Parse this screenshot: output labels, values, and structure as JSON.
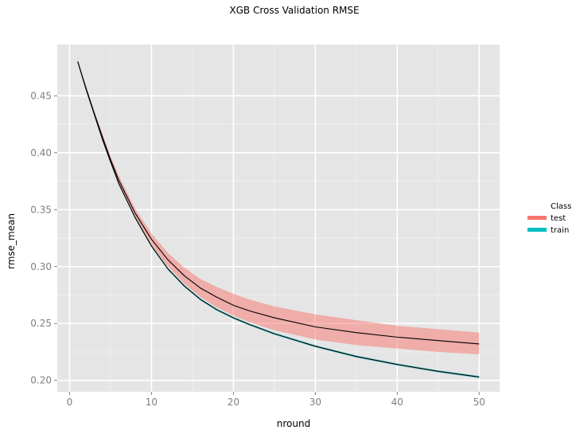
{
  "chart_data": {
    "type": "line",
    "title": "XGB Cross Validation RMSE",
    "xlabel": "nround",
    "ylabel": "rmse_mean",
    "xlim": [
      -1.5,
      52.5
    ],
    "ylim": [
      0.19,
      0.495
    ],
    "x_ticks": [
      0,
      10,
      20,
      30,
      40,
      50
    ],
    "x_tick_labels": [
      "0",
      "10",
      "20",
      "30",
      "40",
      "50"
    ],
    "y_ticks": [
      0.2,
      0.25,
      0.3,
      0.35,
      0.4,
      0.45
    ],
    "y_tick_labels": [
      "0.20",
      "0.25",
      "0.30",
      "0.35",
      "0.40",
      "0.45"
    ],
    "grid": true,
    "legend": {
      "title": "Class",
      "position": "right",
      "entries": [
        {
          "label": "test",
          "color": "#F8766D"
        },
        {
          "label": "train",
          "color": "#00BFC4"
        }
      ]
    },
    "x": [
      1,
      2,
      3,
      4,
      5,
      6,
      8,
      10,
      12,
      14,
      16,
      18,
      20,
      22,
      25,
      30,
      35,
      40,
      45,
      50
    ],
    "series": [
      {
        "name": "test",
        "color": "#F8766D",
        "values": [
          0.48,
          0.457,
          0.435,
          0.414,
          0.394,
          0.376,
          0.347,
          0.324,
          0.306,
          0.292,
          0.281,
          0.273,
          0.266,
          0.261,
          0.255,
          0.247,
          0.242,
          0.238,
          0.235,
          0.232
        ],
        "lower": [
          0.479,
          0.456,
          0.433,
          0.411,
          0.391,
          0.372,
          0.343,
          0.319,
          0.3,
          0.285,
          0.273,
          0.264,
          0.257,
          0.251,
          0.244,
          0.236,
          0.231,
          0.228,
          0.225,
          0.223
        ],
        "upper": [
          0.481,
          0.458,
          0.437,
          0.417,
          0.397,
          0.38,
          0.351,
          0.329,
          0.312,
          0.299,
          0.289,
          0.282,
          0.276,
          0.271,
          0.265,
          0.258,
          0.253,
          0.248,
          0.245,
          0.242
        ]
      },
      {
        "name": "train",
        "color": "#00BFC4",
        "values": [
          0.48,
          0.456,
          0.434,
          0.412,
          0.392,
          0.373,
          0.343,
          0.318,
          0.298,
          0.283,
          0.271,
          0.262,
          0.255,
          0.249,
          0.241,
          0.23,
          0.221,
          0.214,
          0.208,
          0.203
        ],
        "lower": [
          0.479,
          0.455,
          0.433,
          0.411,
          0.391,
          0.372,
          0.342,
          0.317,
          0.297,
          0.282,
          0.27,
          0.261,
          0.254,
          0.248,
          0.24,
          0.229,
          0.22,
          0.213,
          0.207,
          0.202
        ],
        "upper": [
          0.481,
          0.457,
          0.435,
          0.413,
          0.393,
          0.374,
          0.344,
          0.319,
          0.299,
          0.284,
          0.272,
          0.263,
          0.256,
          0.25,
          0.242,
          0.231,
          0.222,
          0.215,
          0.209,
          0.204
        ]
      }
    ]
  }
}
